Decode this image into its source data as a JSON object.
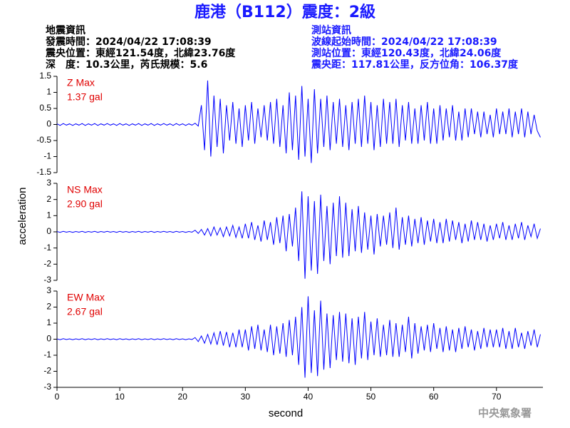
{
  "title": "鹿港（B112）震度：2級",
  "header": {
    "left": [
      "地震資訊",
      "發震時間：2024/04/22 17:08:39",
      "震央位置：東經121.54度，北緯23.76度",
      "深　度：10.3公里，芮氏規模：5.6"
    ],
    "right": [
      "測站資訊",
      "波線起始時間：2024/04/22 17:08:39",
      "測站位置：東經120.43度，北緯24.06度",
      "震央距：117.81公里，反方位角：106.37度"
    ]
  },
  "agency": "中央氣象署",
  "chart_data": [
    {
      "type": "line",
      "annotations": [
        "Z Max",
        "1.37 gal"
      ],
      "x": [
        0,
        0.5,
        1,
        1.5,
        2,
        2.5,
        3,
        3.5,
        4,
        4.5,
        5,
        5.5,
        6,
        6.5,
        7,
        7.5,
        8,
        8.5,
        9,
        9.5,
        10,
        10.5,
        11,
        11.5,
        12,
        12.5,
        13,
        13.5,
        14,
        14.5,
        15,
        15.5,
        16,
        16.5,
        17,
        17.5,
        18,
        18.5,
        19,
        19.5,
        20,
        20.5,
        21,
        21.5,
        22,
        22.5,
        23,
        23.5,
        24,
        24.5,
        25,
        25.5,
        26,
        26.5,
        27,
        27.5,
        28,
        28.5,
        29,
        29.5,
        30,
        30.5,
        31,
        31.5,
        32,
        32.5,
        33,
        33.5,
        34,
        34.5,
        35,
        35.5,
        36,
        36.5,
        37,
        37.5,
        38,
        38.5,
        39,
        39.5,
        40,
        40.5,
        41,
        41.5,
        42,
        42.5,
        43,
        43.5,
        44,
        44.5,
        45,
        45.5,
        46,
        46.5,
        47,
        47.5,
        48,
        48.5,
        49,
        49.5,
        50,
        50.5,
        51,
        51.5,
        52,
        52.5,
        53,
        53.5,
        54,
        54.5,
        55,
        55.5,
        56,
        56.5,
        57,
        57.5,
        58,
        58.5,
        59,
        59.5,
        60,
        60.5,
        61,
        61.5,
        62,
        62.5,
        63,
        63.5,
        64,
        64.5,
        65,
        65.5,
        66,
        66.5,
        67,
        67.5,
        68,
        68.5,
        69,
        69.5,
        70,
        70.5,
        71,
        71.5,
        72,
        72.5,
        73,
        73.5,
        74,
        74.5,
        75,
        75.5,
        76,
        76.5,
        77
      ],
      "series": [
        {
          "color": "#0000ff",
          "values": [
            0.02,
            -0.03,
            0.03,
            -0.02,
            0.02,
            -0.03,
            0.02,
            -0.02,
            0.03,
            -0.03,
            0.02,
            -0.02,
            0.03,
            -0.03,
            0.02,
            -0.02,
            0.03,
            -0.02,
            0.02,
            -0.03,
            0.03,
            -0.02,
            0.02,
            -0.03,
            0.02,
            -0.02,
            0.03,
            -0.03,
            0.02,
            -0.02,
            0.03,
            -0.03,
            0.02,
            -0.02,
            0.03,
            -0.02,
            0.02,
            -0.03,
            0.03,
            -0.02,
            0.02,
            -0.03,
            0.02,
            -0.02,
            0.04,
            -0.05,
            0.6,
            -0.8,
            1.37,
            -1.0,
            0.9,
            -0.7,
            0.8,
            -0.9,
            0.6,
            -0.5,
            0.7,
            -0.6,
            0.5,
            -0.7,
            0.6,
            -0.5,
            0.7,
            -0.6,
            0.5,
            -0.4,
            0.6,
            -0.5,
            0.7,
            -0.6,
            0.8,
            -0.7,
            0.6,
            -0.9,
            1.0,
            -0.8,
            0.9,
            -1.1,
            1.2,
            -1.0,
            0.8,
            -1.2,
            1.1,
            -0.9,
            0.8,
            -0.7,
            0.9,
            -0.8,
            0.7,
            -0.6,
            0.8,
            -0.7,
            0.6,
            -0.8,
            0.7,
            -0.6,
            0.8,
            -0.7,
            0.9,
            -0.6,
            0.7,
            -0.8,
            0.6,
            -0.7,
            0.8,
            -0.6,
            0.7,
            -0.6,
            0.8,
            -0.7,
            0.6,
            -0.5,
            0.7,
            -0.6,
            0.5,
            -0.6,
            0.6,
            -0.5,
            0.7,
            -0.6,
            0.5,
            -0.6,
            0.6,
            -0.5,
            0.5,
            -0.4,
            0.6,
            -0.5,
            0.4,
            -0.5,
            0.5,
            -0.4,
            0.5,
            -0.3,
            0.4,
            -0.4,
            0.4,
            -0.3,
            0.3,
            -0.4,
            0.5,
            -0.3,
            0.4,
            -0.3,
            0.5,
            -0.4,
            0.4,
            -0.3,
            0.5,
            -0.4,
            0.4,
            -0.3,
            0.3,
            -0.2,
            -0.4
          ]
        }
      ],
      "xlim": [
        0,
        77.4
      ],
      "ylim": [
        -1.5,
        1.5
      ],
      "yticks": [
        -1.5,
        -1,
        -0.5,
        0,
        0.5,
        1,
        1.5
      ]
    },
    {
      "type": "line",
      "annotations": [
        "NS Max",
        "2.90 gal"
      ],
      "ylabel": "acceleration",
      "x": [
        0,
        0.5,
        1,
        1.5,
        2,
        2.5,
        3,
        3.5,
        4,
        4.5,
        5,
        5.5,
        6,
        6.5,
        7,
        7.5,
        8,
        8.5,
        9,
        9.5,
        10,
        10.5,
        11,
        11.5,
        12,
        12.5,
        13,
        13.5,
        14,
        14.5,
        15,
        15.5,
        16,
        16.5,
        17,
        17.5,
        18,
        18.5,
        19,
        19.5,
        20,
        20.5,
        21,
        21.5,
        22,
        22.5,
        23,
        23.5,
        24,
        24.5,
        25,
        25.5,
        26,
        26.5,
        27,
        27.5,
        28,
        28.5,
        29,
        29.5,
        30,
        30.5,
        31,
        31.5,
        32,
        32.5,
        33,
        33.5,
        34,
        34.5,
        35,
        35.5,
        36,
        36.5,
        37,
        37.5,
        38,
        38.5,
        39,
        39.5,
        40,
        40.5,
        41,
        41.5,
        42,
        42.5,
        43,
        43.5,
        44,
        44.5,
        45,
        45.5,
        46,
        46.5,
        47,
        47.5,
        48,
        48.5,
        49,
        49.5,
        50,
        50.5,
        51,
        51.5,
        52,
        52.5,
        53,
        53.5,
        54,
        54.5,
        55,
        55.5,
        56,
        56.5,
        57,
        57.5,
        58,
        58.5,
        59,
        59.5,
        60,
        60.5,
        61,
        61.5,
        62,
        62.5,
        63,
        63.5,
        64,
        64.5,
        65,
        65.5,
        66,
        66.5,
        67,
        67.5,
        68,
        68.5,
        69,
        69.5,
        70,
        70.5,
        71,
        71.5,
        72,
        72.5,
        73,
        73.5,
        74,
        74.5,
        75,
        75.5,
        76,
        76.5,
        77
      ],
      "series": [
        {
          "color": "#0000ff",
          "values": [
            0.02,
            -0.03,
            0.03,
            -0.02,
            0.02,
            -0.03,
            0.02,
            -0.02,
            0.03,
            -0.03,
            0.02,
            -0.02,
            0.03,
            -0.03,
            0.02,
            -0.02,
            0.03,
            -0.02,
            0.02,
            -0.03,
            0.03,
            -0.02,
            0.02,
            -0.03,
            0.02,
            -0.02,
            0.03,
            -0.03,
            0.02,
            -0.02,
            0.03,
            -0.03,
            0.02,
            -0.02,
            0.03,
            -0.02,
            0.02,
            -0.03,
            0.03,
            -0.02,
            0.02,
            -0.03,
            0.02,
            -0.02,
            0.1,
            -0.1,
            0.15,
            -0.2,
            0.2,
            -0.25,
            0.3,
            -0.2,
            0.25,
            -0.3,
            0.3,
            -0.25,
            0.4,
            -0.35,
            0.3,
            -0.4,
            0.5,
            -0.4,
            0.6,
            -0.5,
            0.4,
            -0.6,
            0.7,
            -0.5,
            0.6,
            -0.8,
            0.9,
            -0.7,
            1.0,
            -1.2,
            1.1,
            -0.9,
            1.5,
            -1.8,
            2.5,
            -2.9,
            2.2,
            -2.4,
            1.9,
            -2.6,
            2.3,
            -1.8,
            1.6,
            -2.0,
            1.8,
            -1.5,
            2.2,
            -1.6,
            1.8,
            -1.5,
            1.4,
            -1.2,
            1.6,
            -1.3,
            1.2,
            -1.1,
            1.0,
            -1.4,
            1.1,
            -0.9,
            1.0,
            -0.8,
            1.2,
            -1.0,
            1.5,
            -1.1,
            0.9,
            -0.8,
            1.0,
            -0.9,
            0.8,
            -0.7,
            0.9,
            -0.8,
            0.7,
            -0.6,
            0.8,
            -0.7,
            0.6,
            -0.7,
            0.8,
            -0.6,
            0.7,
            -0.5,
            0.6,
            -0.7,
            0.5,
            -0.6,
            0.7,
            -0.5,
            0.6,
            -0.5,
            0.5,
            -0.6,
            0.4,
            -0.5,
            0.5,
            -0.4,
            0.6,
            -0.5,
            0.4,
            -0.5,
            0.5,
            -0.4,
            0.6,
            -0.5,
            0.4,
            -0.3,
            0.5,
            -0.4,
            0.2
          ]
        }
      ],
      "xlim": [
        0,
        77.4
      ],
      "ylim": [
        -3,
        3
      ],
      "yticks": [
        -3,
        -2,
        -1,
        0,
        1,
        2,
        3
      ]
    },
    {
      "type": "line",
      "annotations": [
        "EW Max",
        "2.67 gal"
      ],
      "xlabel": "second",
      "x": [
        0,
        0.5,
        1,
        1.5,
        2,
        2.5,
        3,
        3.5,
        4,
        4.5,
        5,
        5.5,
        6,
        6.5,
        7,
        7.5,
        8,
        8.5,
        9,
        9.5,
        10,
        10.5,
        11,
        11.5,
        12,
        12.5,
        13,
        13.5,
        14,
        14.5,
        15,
        15.5,
        16,
        16.5,
        17,
        17.5,
        18,
        18.5,
        19,
        19.5,
        20,
        20.5,
        21,
        21.5,
        22,
        22.5,
        23,
        23.5,
        24,
        24.5,
        25,
        25.5,
        26,
        26.5,
        27,
        27.5,
        28,
        28.5,
        29,
        29.5,
        30,
        30.5,
        31,
        31.5,
        32,
        32.5,
        33,
        33.5,
        34,
        34.5,
        35,
        35.5,
        36,
        36.5,
        37,
        37.5,
        38,
        38.5,
        39,
        39.5,
        40,
        40.5,
        41,
        41.5,
        42,
        42.5,
        43,
        43.5,
        44,
        44.5,
        45,
        45.5,
        46,
        46.5,
        47,
        47.5,
        48,
        48.5,
        49,
        49.5,
        50,
        50.5,
        51,
        51.5,
        52,
        52.5,
        53,
        53.5,
        54,
        54.5,
        55,
        55.5,
        56,
        56.5,
        57,
        57.5,
        58,
        58.5,
        59,
        59.5,
        60,
        60.5,
        61,
        61.5,
        62,
        62.5,
        63,
        63.5,
        64,
        64.5,
        65,
        65.5,
        66,
        66.5,
        67,
        67.5,
        68,
        68.5,
        69,
        69.5,
        70,
        70.5,
        71,
        71.5,
        72,
        72.5,
        73,
        73.5,
        74,
        74.5,
        75,
        75.5,
        76,
        76.5,
        77
      ],
      "series": [
        {
          "color": "#0000ff",
          "values": [
            0.02,
            -0.03,
            0.03,
            -0.02,
            0.02,
            -0.03,
            0.02,
            -0.02,
            0.03,
            -0.03,
            0.02,
            -0.02,
            0.03,
            -0.03,
            0.02,
            -0.02,
            0.03,
            -0.02,
            0.02,
            -0.03,
            0.03,
            -0.02,
            0.02,
            -0.03,
            0.02,
            -0.02,
            0.03,
            -0.03,
            0.02,
            -0.02,
            0.03,
            -0.03,
            0.02,
            -0.02,
            0.03,
            -0.02,
            0.02,
            -0.03,
            0.03,
            -0.02,
            0.02,
            -0.03,
            0.02,
            -0.02,
            0.1,
            -0.15,
            0.2,
            -0.25,
            0.3,
            -0.3,
            0.4,
            -0.35,
            0.5,
            -0.4,
            0.45,
            -0.5,
            0.4,
            -0.5,
            0.6,
            -0.5,
            0.6,
            -0.7,
            0.8,
            -0.6,
            0.9,
            -0.7,
            0.6,
            -0.8,
            0.9,
            -1.0,
            0.8,
            -0.9,
            1.0,
            -1.1,
            1.2,
            -1.0,
            1.4,
            -1.6,
            2.0,
            -2.4,
            2.67,
            -2.1,
            1.8,
            -2.3,
            2.4,
            -1.9,
            1.6,
            -1.8,
            1.5,
            -1.3,
            1.7,
            -1.4,
            1.6,
            -1.5,
            1.3,
            -1.6,
            1.4,
            -1.2,
            1.7,
            -1.3,
            1.1,
            -1.0,
            1.3,
            -1.1,
            0.9,
            -1.0,
            1.2,
            -1.1,
            1.0,
            -1.1,
            0.9,
            -0.8,
            1.4,
            -1.2,
            1.0,
            -0.9,
            0.8,
            -0.7,
            0.9,
            -0.8,
            1.0,
            -0.6,
            0.7,
            -0.8,
            0.8,
            -0.7,
            0.6,
            -0.8,
            0.7,
            -0.6,
            0.8,
            -0.5,
            0.6,
            -0.7,
            0.5,
            -0.6,
            0.7,
            -0.5,
            0.6,
            -0.5,
            0.6,
            -0.5,
            0.7,
            -0.6,
            0.5,
            -0.6,
            0.7,
            -0.5,
            0.4,
            -0.6,
            0.5,
            -0.4,
            0.6,
            -0.5,
            0.3
          ]
        }
      ],
      "xlim": [
        0,
        77.4
      ],
      "ylim": [
        -3,
        3
      ],
      "yticks": [
        -3,
        -2,
        -1,
        0,
        1,
        2,
        3
      ],
      "xticks": [
        0,
        10,
        20,
        30,
        40,
        50,
        60,
        70
      ]
    }
  ]
}
